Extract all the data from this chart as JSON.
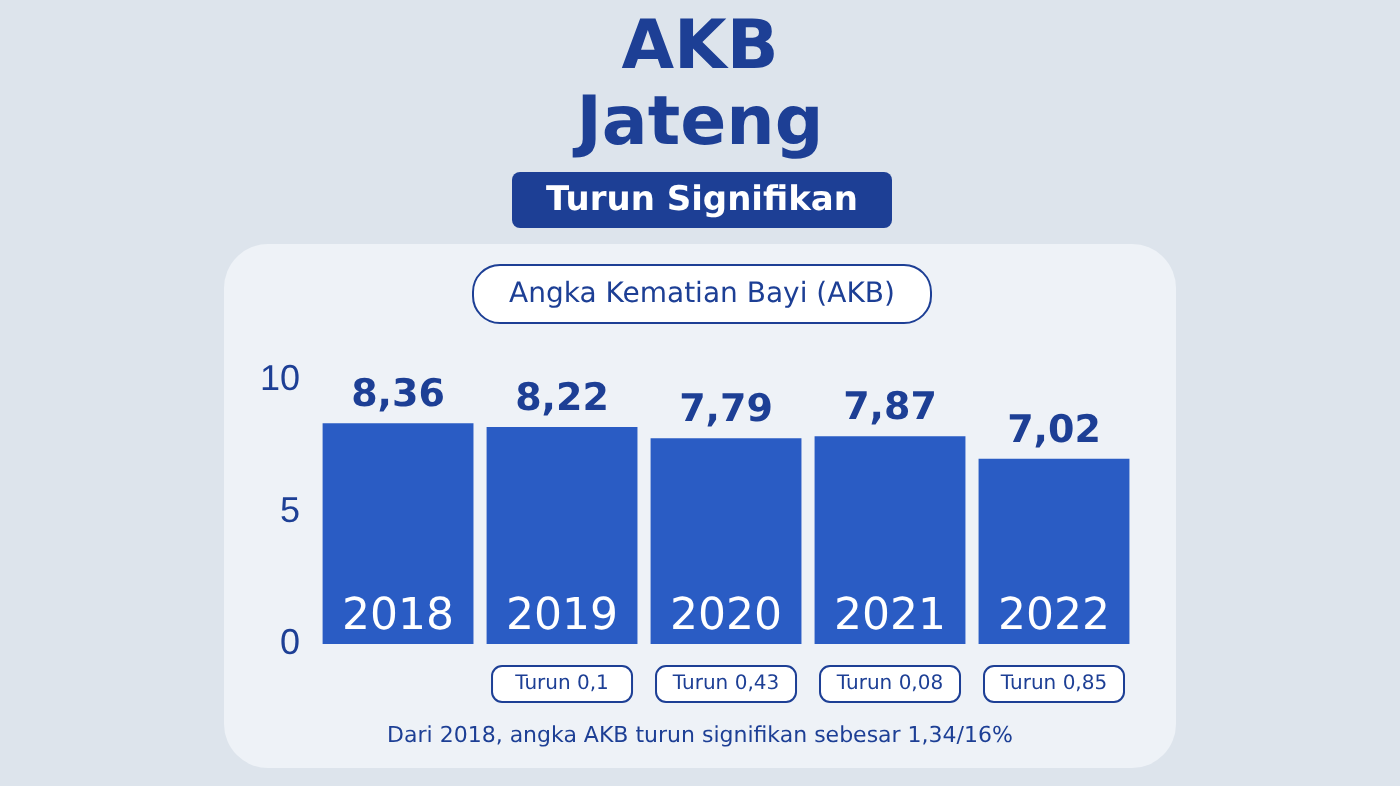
{
  "chart_data": {
    "type": "bar",
    "title": "AKB\nJateng",
    "subtitle": "Turun Signifikan",
    "xlabel": "Angka Kematian Bayi (AKB)",
    "categories": [
      "2018",
      "2019",
      "2020",
      "2021",
      "2022"
    ],
    "values": [
      8.36,
      8.22,
      7.79,
      7.87,
      7.02
    ],
    "value_labels": [
      "8,36",
      "8,22",
      "7,79",
      "7,87",
      "7,02"
    ],
    "color": "#2a5cc4",
    "ylim": [
      0,
      10
    ],
    "yticks": [
      0,
      5,
      10
    ],
    "grid": false,
    "legend": false,
    "annotations": [
      "Turun 0,1",
      "Turun 0,43",
      "Turun 0,08",
      "Turun 0,85",
      "Dari 2018, angka AKB turun signifikan sebesar 1,34/16%"
    ]
  }
}
